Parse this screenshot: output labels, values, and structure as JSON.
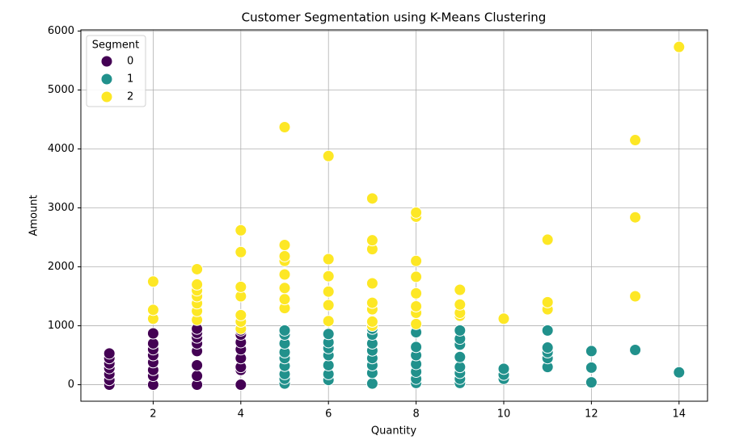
{
  "chart_data": {
    "type": "scatter",
    "title": "Customer Segmentation using K-Means Clustering",
    "x_label": "Quantity",
    "y_label": "Amount",
    "legend_title": "Segment",
    "legend_position": "upper left",
    "grid": true,
    "xlim": [
      0.35,
      14.65
    ],
    "ylim": [
      -280,
      6020
    ],
    "xticks": [
      2,
      4,
      6,
      8,
      10,
      12,
      14
    ],
    "yticks": [
      0,
      1000,
      2000,
      3000,
      4000,
      5000,
      6000
    ],
    "series": [
      {
        "name": "0",
        "color": "#440154",
        "x": [
          1,
          1,
          1,
          1,
          1,
          1,
          1,
          2,
          2,
          2,
          2,
          2,
          2,
          2,
          2,
          3,
          3,
          3,
          3,
          3,
          3,
          3,
          3,
          4,
          4,
          4,
          4,
          4,
          4,
          4,
          4
        ],
        "values": [
          0,
          80,
          180,
          280,
          360,
          450,
          530,
          0,
          150,
          250,
          380,
          500,
          600,
          700,
          870,
          0,
          150,
          330,
          570,
          700,
          800,
          880,
          950,
          0,
          250,
          300,
          450,
          600,
          720,
          850,
          920
        ]
      },
      {
        "name": "1",
        "color": "#21918c",
        "x": [
          5,
          5,
          5,
          5,
          5,
          5,
          5,
          5,
          5,
          6,
          6,
          6,
          6,
          6,
          6,
          6,
          7,
          7,
          7,
          7,
          7,
          7,
          7,
          7,
          8,
          8,
          8,
          8,
          8,
          8,
          8,
          9,
          9,
          9,
          9,
          9,
          9,
          9,
          9,
          10,
          10,
          10,
          11,
          11,
          11,
          11,
          11,
          12,
          12,
          12,
          13,
          14
        ],
        "values": [
          20,
          100,
          180,
          320,
          450,
          550,
          700,
          850,
          920,
          80,
          180,
          330,
          500,
          620,
          720,
          860,
          20,
          200,
          330,
          450,
          580,
          700,
          850,
          950,
          30,
          100,
          220,
          350,
          500,
          640,
          890,
          30,
          100,
          200,
          300,
          470,
          680,
          780,
          920,
          100,
          170,
          270,
          300,
          450,
          550,
          630,
          920,
          40,
          290,
          570,
          590,
          210
        ]
      },
      {
        "name": "2",
        "color": "#fde725",
        "x": [
          2,
          2,
          2,
          3,
          3,
          3,
          3,
          3,
          3,
          3,
          4,
          4,
          4,
          4,
          4,
          4,
          4,
          5,
          5,
          5,
          5,
          5,
          5,
          5,
          5,
          6,
          6,
          6,
          6,
          6,
          6,
          7,
          7,
          7,
          7,
          7,
          7,
          7,
          7,
          8,
          8,
          8,
          8,
          8,
          8,
          8,
          8,
          9,
          9,
          9,
          9,
          10,
          11,
          11,
          11,
          13,
          13,
          13,
          14
        ],
        "values": [
          1120,
          1270,
          1750,
          1100,
          1250,
          1380,
          1500,
          1600,
          1700,
          1960,
          950,
          1070,
          1180,
          1500,
          1660,
          2250,
          2620,
          1300,
          1450,
          1640,
          1870,
          2100,
          2180,
          2370,
          4370,
          1080,
          1350,
          1580,
          1840,
          2130,
          3880,
          1000,
          1070,
          1280,
          1390,
          1720,
          2300,
          2450,
          3160,
          1030,
          1220,
          1330,
          1550,
          1830,
          2100,
          2850,
          2920,
          1170,
          1220,
          1360,
          1610,
          1120,
          1280,
          1400,
          2460,
          1500,
          2840,
          4150,
          5730
        ]
      }
    ]
  }
}
